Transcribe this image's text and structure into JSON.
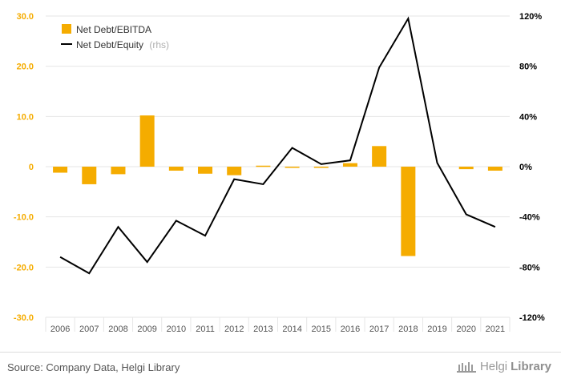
{
  "colors": {
    "bar": "#f5ac00",
    "line": "#000000",
    "left_tick": "#f5ac00",
    "right_tick": "#000000",
    "grid": "#e6e6e6",
    "rhs_note": "#b0b0b0"
  },
  "chart_data": {
    "type": "bar+line",
    "categories": [
      "2006",
      "2007",
      "2008",
      "2009",
      "2010",
      "2011",
      "2012",
      "2013",
      "2014",
      "2015",
      "2016",
      "2017",
      "2018",
      "2019",
      "2020",
      "2021"
    ],
    "series": [
      {
        "name": "Net Debt/EBITDA",
        "kind": "bar",
        "axis": "left",
        "values": [
          -1.2,
          -3.5,
          -1.5,
          10.2,
          -0.8,
          -1.4,
          -1.7,
          0.2,
          -0.2,
          -0.1,
          0.7,
          4.1,
          -17.8,
          0.0,
          -0.5,
          -0.8
        ]
      },
      {
        "name": "Net Debt/Equity",
        "name_suffix": "(rhs)",
        "kind": "line",
        "axis": "right",
        "values": [
          -72,
          -85,
          -48,
          -76,
          -43,
          -55,
          -10,
          -14,
          15,
          2,
          5,
          79,
          118,
          3,
          -38,
          -48
        ]
      }
    ],
    "left_axis": {
      "ylim": [
        -30,
        30
      ],
      "ticks": [
        "30.0",
        "20.0",
        "10.0",
        "0",
        "-10.0",
        "-20.0",
        "-30.0"
      ]
    },
    "right_axis": {
      "ylim": [
        -120,
        120
      ],
      "ticks": [
        "120%",
        "80%",
        "40%",
        "0%",
        "-40%",
        "-80%",
        "-120%"
      ]
    },
    "grid": "horizontal",
    "legend_position": "top-left"
  },
  "footer": {
    "source": "Source: Company Data, Helgi Library",
    "brand_light": "Helgi",
    "brand_bold": "Library"
  }
}
